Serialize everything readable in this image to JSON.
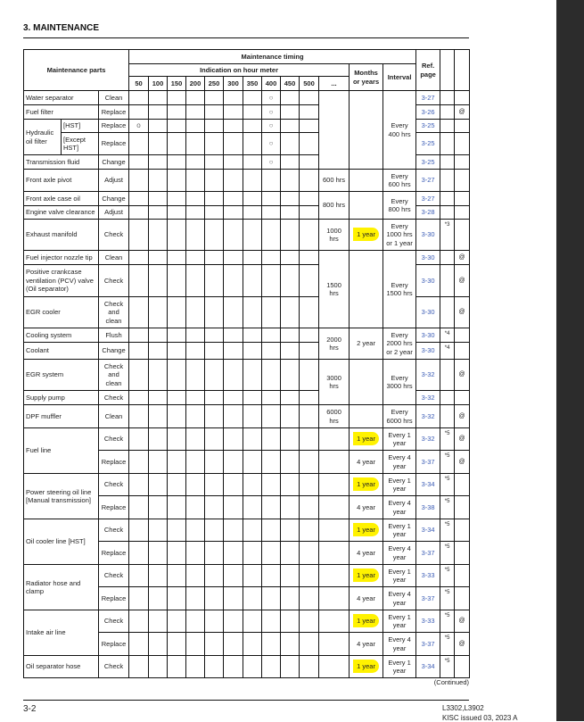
{
  "page": {
    "section_title": "3. MAINTENANCE",
    "continued": "(Continued)",
    "page_number": "3-2",
    "model": "L3302,L3902",
    "issued": "KISC issued 03, 2023 A"
  },
  "colors": {
    "highlight": "#fff200",
    "ref_link": "#3a5bb5"
  },
  "table": {
    "header": {
      "parts": "Maintenance parts",
      "timing": "Maintenance timing",
      "hour_meter": "Indication on hour meter",
      "hours": [
        "50",
        "100",
        "150",
        "200",
        "250",
        "300",
        "350",
        "400",
        "450",
        "500",
        "..."
      ],
      "months": "Months or years",
      "interval": "Interval",
      "ref": "Ref. page"
    },
    "rows": [
      {
        "part": "Water separator",
        "action": "Clean",
        "marks": [
          "",
          "",
          "",
          "",
          "",
          "",
          "",
          "○",
          "",
          ""
        ],
        "hours": "",
        "months": "",
        "interval": "Every 400 hrs",
        "ref": "3-27",
        "note": "",
        "symbol": ""
      },
      {
        "part": "Fuel filter",
        "action": "Replace",
        "marks": [
          "",
          "",
          "",
          "",
          "",
          "",
          "",
          "○",
          "",
          ""
        ],
        "ref": "3-26",
        "note": "",
        "symbol": "@"
      },
      {
        "part": "Hydraulic oil filter",
        "sub": "[HST]",
        "action": "Replace",
        "marks": [
          "o",
          "",
          "",
          "",
          "",
          "",
          "",
          "○",
          "",
          ""
        ],
        "ref": "3-25",
        "note": "",
        "symbol": ""
      },
      {
        "sub": "[Except HST]",
        "action": "Replace",
        "marks": [
          "",
          "",
          "",
          "",
          "",
          "",
          "",
          "○",
          "",
          ""
        ],
        "ref": "3-25",
        "note": "",
        "symbol": ""
      },
      {
        "part": "Transmission fluid",
        "action": "Change",
        "marks": [
          "",
          "",
          "",
          "",
          "",
          "",
          "",
          "○",
          "",
          ""
        ],
        "ref": "3-25",
        "note": "",
        "symbol": ""
      },
      {
        "part": "Front axle pivot",
        "action": "Adjust",
        "marks": [
          "",
          "",
          "",
          "",
          "",
          "",
          "",
          "",
          "",
          ""
        ],
        "hours": "600 hrs",
        "months": "",
        "interval": "Every 600 hrs",
        "ref": "3-27",
        "note": "",
        "symbol": ""
      },
      {
        "part": "Front axle case oil",
        "action": "Change",
        "marks": [
          "",
          "",
          "",
          "",
          "",
          "",
          "",
          "",
          "",
          ""
        ],
        "hours": "800 hrs",
        "months": "",
        "interval": "Every 800 hrs",
        "ref": "3-27",
        "note": "",
        "symbol": ""
      },
      {
        "part": "Engine valve clearance",
        "action": "Adjust",
        "marks": [
          "",
          "",
          "",
          "",
          "",
          "",
          "",
          "",
          "",
          ""
        ],
        "ref": "3-28",
        "note": "",
        "symbol": ""
      },
      {
        "part": "Exhaust manifold",
        "action": "Check",
        "marks": [
          "",
          "",
          "",
          "",
          "",
          "",
          "",
          "",
          "",
          ""
        ],
        "hours": "1000 hrs",
        "months": "1 year",
        "highlighted": true,
        "interval": "Every 1000 hrs or 1 year",
        "ref": "3-30",
        "note": "*3",
        "symbol": ""
      },
      {
        "part": "Fuel injector nozzle tip",
        "action": "Clean",
        "marks": [
          "",
          "",
          "",
          "",
          "",
          "",
          "",
          "",
          "",
          ""
        ],
        "hours": "1500 hrs",
        "months": "",
        "interval": "Every 1500 hrs",
        "ref": "3-30",
        "note": "",
        "symbol": "@"
      },
      {
        "part": "Positive crankcase ventilation (PCV) valve (Oil separator)",
        "action": "Check",
        "marks": [
          "",
          "",
          "",
          "",
          "",
          "",
          "",
          "",
          "",
          ""
        ],
        "ref": "3-30",
        "note": "",
        "symbol": "@"
      },
      {
        "part": "EGR cooler",
        "action": "Check and clean",
        "marks": [
          "",
          "",
          "",
          "",
          "",
          "",
          "",
          "",
          "",
          ""
        ],
        "ref": "3-30",
        "note": "",
        "symbol": "@"
      },
      {
        "part": "Cooling system",
        "action": "Flush",
        "marks": [
          "",
          "",
          "",
          "",
          "",
          "",
          "",
          "",
          "",
          ""
        ],
        "hours": "2000 hrs",
        "months": "2 year",
        "interval": "Every 2000 hrs or 2 year",
        "ref": "3-30",
        "note": "*4",
        "symbol": ""
      },
      {
        "part": "Coolant",
        "action": "Change",
        "marks": [
          "",
          "",
          "",
          "",
          "",
          "",
          "",
          "",
          "",
          ""
        ],
        "ref": "3-30",
        "note": "*4",
        "symbol": ""
      },
      {
        "part": "EGR system",
        "action": "Check and clean",
        "marks": [
          "",
          "",
          "",
          "",
          "",
          "",
          "",
          "",
          "",
          ""
        ],
        "hours": "3000 hrs",
        "months": "",
        "interval": "Every 3000 hrs",
        "ref": "3-32",
        "note": "",
        "symbol": "@"
      },
      {
        "part": "Supply pump",
        "action": "Check",
        "marks": [
          "",
          "",
          "",
          "",
          "",
          "",
          "",
          "",
          "",
          ""
        ],
        "ref": "3-32",
        "note": "",
        "symbol": ""
      },
      {
        "part": "DPF muffler",
        "action": "Clean",
        "marks": [
          "",
          "",
          "",
          "",
          "",
          "",
          "",
          "",
          "",
          ""
        ],
        "hours": "6000 hrs",
        "months": "",
        "interval": "Every 6000 hrs",
        "ref": "3-32",
        "note": "",
        "symbol": "@"
      },
      {
        "part": "Fuel line",
        "action": "Check",
        "marks": [
          "",
          "",
          "",
          "",
          "",
          "",
          "",
          "",
          "",
          ""
        ],
        "hours": "",
        "months": "1 year",
        "highlighted": true,
        "interval": "Every 1 year",
        "ref": "3-32",
        "note": "*5",
        "symbol": "@"
      },
      {
        "action": "Replace",
        "marks": [
          "",
          "",
          "",
          "",
          "",
          "",
          "",
          "",
          "",
          ""
        ],
        "hours": "",
        "months": "4 year",
        "interval": "Every 4 year",
        "ref": "3-37",
        "note": "*5",
        "symbol": "@"
      },
      {
        "part": "Power steering oil line [Manual transmission]",
        "action": "Check",
        "marks": [
          "",
          "",
          "",
          "",
          "",
          "",
          "",
          "",
          "",
          ""
        ],
        "hours": "",
        "months": "1 year",
        "highlighted": true,
        "interval": "Every 1 year",
        "ref": "3-34",
        "note": "*5",
        "symbol": ""
      },
      {
        "action": "Replace",
        "marks": [
          "",
          "",
          "",
          "",
          "",
          "",
          "",
          "",
          "",
          ""
        ],
        "hours": "",
        "months": "4 year",
        "interval": "Every 4 year",
        "ref": "3-38",
        "note": "*5",
        "symbol": ""
      },
      {
        "part": "Oil cooler line [HST]",
        "action": "Check",
        "marks": [
          "",
          "",
          "",
          "",
          "",
          "",
          "",
          "",
          "",
          ""
        ],
        "hours": "",
        "months": "1 year",
        "highlighted": true,
        "interval": "Every 1 year",
        "ref": "3-34",
        "note": "*5",
        "symbol": ""
      },
      {
        "action": "Replace",
        "marks": [
          "",
          "",
          "",
          "",
          "",
          "",
          "",
          "",
          "",
          ""
        ],
        "hours": "",
        "months": "4 year",
        "interval": "Every 4 year",
        "ref": "3-37",
        "note": "*5",
        "symbol": ""
      },
      {
        "part": "Radiator hose and clamp",
        "action": "Check",
        "marks": [
          "",
          "",
          "",
          "",
          "",
          "",
          "",
          "",
          "",
          ""
        ],
        "hours": "",
        "months": "1 year",
        "highlighted": true,
        "interval": "Every 1 year",
        "ref": "3-33",
        "note": "*5",
        "symbol": ""
      },
      {
        "action": "Replace",
        "marks": [
          "",
          "",
          "",
          "",
          "",
          "",
          "",
          "",
          "",
          ""
        ],
        "hours": "",
        "months": "4 year",
        "interval": "Every 4 year",
        "ref": "3-37",
        "note": "*5",
        "symbol": ""
      },
      {
        "part": "Intake air line",
        "action": "Check",
        "marks": [
          "",
          "",
          "",
          "",
          "",
          "",
          "",
          "",
          "",
          ""
        ],
        "hours": "",
        "months": "1 year",
        "highlighted": true,
        "interval": "Every 1 year",
        "ref": "3-33",
        "note": "*5",
        "symbol": "@"
      },
      {
        "action": "Replace",
        "marks": [
          "",
          "",
          "",
          "",
          "",
          "",
          "",
          "",
          "",
          ""
        ],
        "hours": "",
        "months": "4 year",
        "interval": "Every 4 year",
        "ref": "3-37",
        "note": "*5",
        "symbol": "@"
      },
      {
        "part": "Oil separator hose",
        "action": "Check",
        "marks": [
          "",
          "",
          "",
          "",
          "",
          "",
          "",
          "",
          "",
          ""
        ],
        "hours": "",
        "months": "1 year",
        "highlighted": true,
        "interval": "Every 1 year",
        "ref": "3-34",
        "note": "*5",
        "symbol": ""
      }
    ]
  }
}
